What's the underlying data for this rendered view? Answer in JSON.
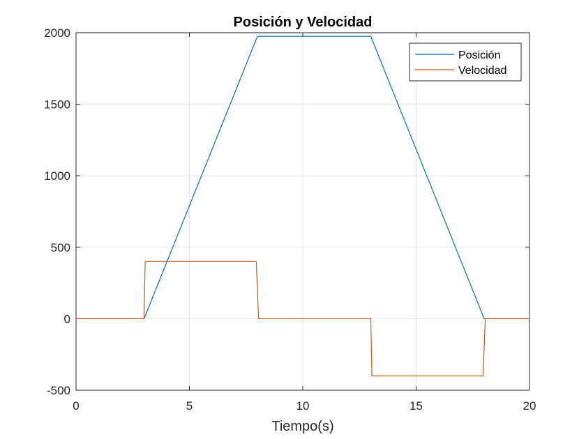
{
  "chart_data": {
    "type": "line",
    "title": "Posición y Velocidad",
    "xlabel": "Tiempo(s)",
    "ylabel": "",
    "xlim": [
      0,
      20
    ],
    "ylim": [
      -500,
      2000
    ],
    "xticks": [
      0,
      5,
      10,
      15,
      20
    ],
    "yticks": [
      -500,
      0,
      500,
      1000,
      1500,
      2000
    ],
    "xtick_labels": [
      "0",
      "5",
      "10",
      "15",
      "20"
    ],
    "ytick_labels": [
      "-500",
      "0",
      "500",
      "1000",
      "1500",
      "2000"
    ],
    "grid": true,
    "legend_position": "top-right",
    "series": [
      {
        "name": "Posición",
        "color": "#0072BD",
        "x": [
          0,
          3,
          8,
          13,
          18,
          20
        ],
        "y": [
          0,
          0,
          1975,
          1975,
          0,
          0
        ]
      },
      {
        "name": "Velocidad",
        "color": "#D95319",
        "x": [
          0,
          3,
          3.05,
          7.95,
          8.05,
          13,
          13.05,
          17.95,
          18.05,
          20
        ],
        "y": [
          0,
          0,
          400,
          400,
          0,
          0,
          -400,
          -400,
          0,
          0
        ]
      }
    ]
  }
}
